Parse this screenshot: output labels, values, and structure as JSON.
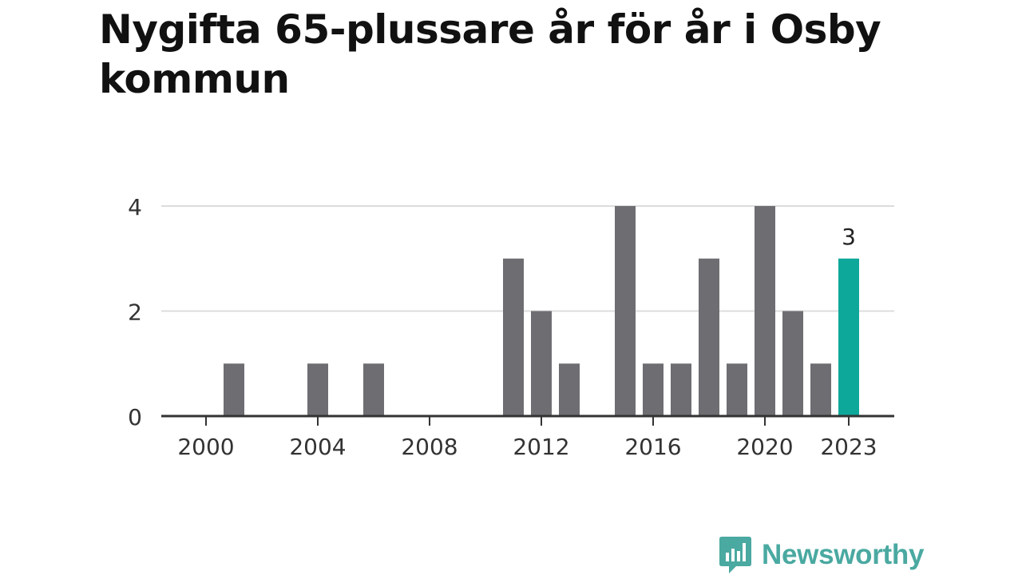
{
  "title": "Nygifta 65-plussare år för år i Osby kommun",
  "chart_data": {
    "type": "bar",
    "title": "Nygifta 65-plussare år för år i Osby kommun",
    "xlabel": "",
    "ylabel": "",
    "categories": [
      2000,
      2001,
      2002,
      2003,
      2004,
      2005,
      2006,
      2007,
      2008,
      2009,
      2010,
      2011,
      2012,
      2013,
      2014,
      2015,
      2016,
      2017,
      2018,
      2019,
      2020,
      2021,
      2022,
      2023
    ],
    "values": [
      0,
      1,
      0,
      0,
      1,
      0,
      1,
      0,
      0,
      0,
      0,
      3,
      2,
      1,
      0,
      4,
      1,
      1,
      3,
      1,
      4,
      2,
      1,
      3
    ],
    "ylim": [
      0,
      4
    ],
    "yticks": [
      0,
      2,
      4
    ],
    "xticks": [
      2000,
      2004,
      2008,
      2012,
      2016,
      2020,
      2023
    ],
    "highlight": {
      "category": 2023,
      "label": "3",
      "color": "#0ea89a"
    },
    "bar_color": "#6e6d72",
    "grid": true
  },
  "logo": {
    "text": "Newsworthy",
    "color": "#4aa9a1"
  }
}
